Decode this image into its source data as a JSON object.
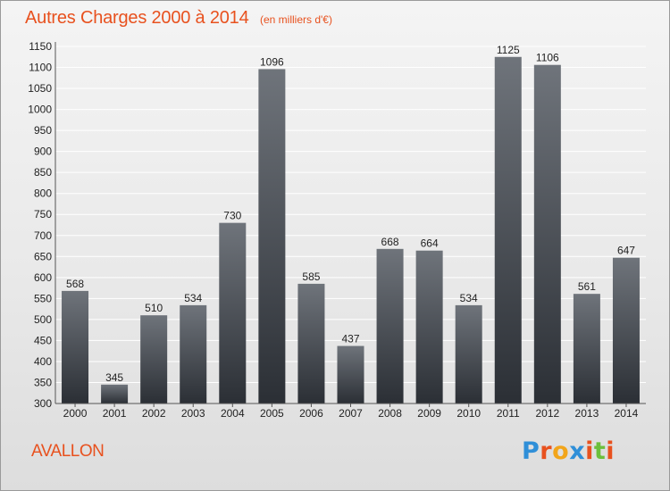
{
  "header": {
    "title": "Autres Charges 2000 à 2014",
    "unit": "(en milliers d'€)"
  },
  "footer": {
    "commune": "AVALLON",
    "logo_text": "Proxiti",
    "logo_colors": [
      "#2f8fd8",
      "#e8511e",
      "#f2a51a",
      "#2f8fd8",
      "#e8511e",
      "#6cbf3c",
      "#e8511e"
    ]
  },
  "colors": {
    "title": "#e8511e",
    "bar_top": "#6f747b",
    "bar_bottom": "#2b2f35"
  },
  "chart_data": {
    "type": "bar",
    "title": "Autres Charges 2000 à 2014",
    "subtitle": "(en milliers d'€)",
    "categories": [
      "2000",
      "2001",
      "2002",
      "2003",
      "2004",
      "2005",
      "2006",
      "2007",
      "2008",
      "2009",
      "2010",
      "2011",
      "2012",
      "2013",
      "2014"
    ],
    "values": [
      568,
      345,
      510,
      534,
      730,
      1096,
      585,
      437,
      668,
      664,
      534,
      1125,
      1106,
      561,
      647
    ],
    "data_labels": [
      "568",
      "345",
      "510",
      "534",
      "730",
      "1096",
      "585",
      "437",
      "668",
      "664",
      "534",
      "1125",
      "1106",
      "561",
      "647"
    ],
    "ylim": [
      300,
      1150
    ],
    "yticks": [
      "300",
      "350",
      "400",
      "450",
      "500",
      "550",
      "600",
      "650",
      "700",
      "750",
      "800",
      "850",
      "900",
      "950",
      "1000",
      "1050",
      "1100",
      "1150"
    ],
    "grid": true,
    "legend": "none"
  }
}
